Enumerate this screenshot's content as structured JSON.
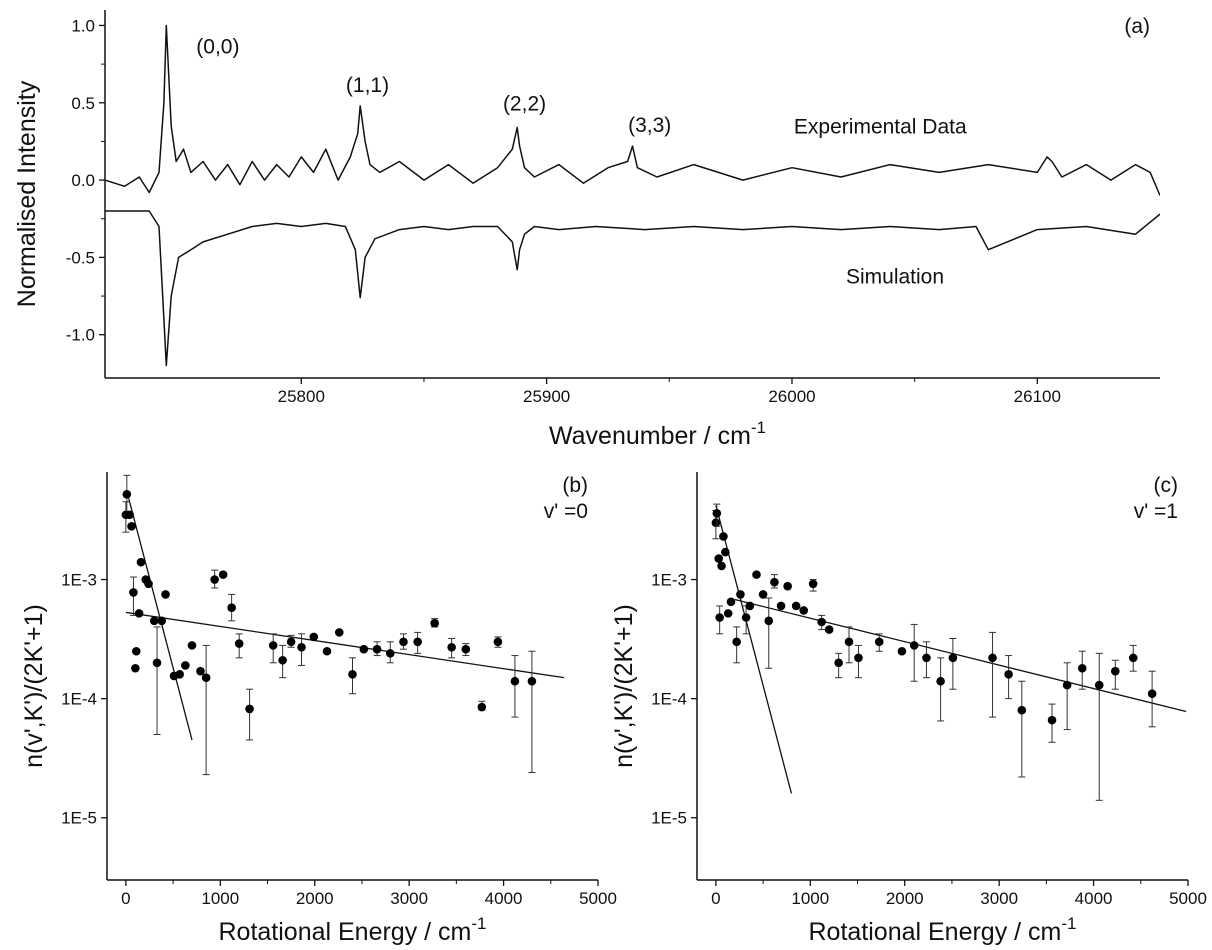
{
  "chart_data": [
    {
      "panel": "(a)",
      "type": "line",
      "xlabel": "Wavenumber / cm",
      "xlabel_sup": "-1",
      "ylabel": "Normalised Intensity",
      "xlim": [
        25720,
        26150
      ],
      "ylim": [
        -1.28,
        1.1
      ],
      "xticks": [
        25800,
        25900,
        26000,
        26100
      ],
      "yticks": [
        -1.0,
        -0.5,
        0.0,
        0.5,
        1.0
      ],
      "ytick_labels": [
        "-1.0",
        "-0.5",
        "0.0",
        "0.5",
        "1.0"
      ],
      "series": [
        {
          "name": "Experimental Data",
          "x": [
            25720,
            25728,
            25734,
            25738,
            25742,
            25744,
            25745,
            25747,
            25749,
            25752,
            25755,
            25760,
            25765,
            25770,
            25775,
            25780,
            25785,
            25790,
            25795,
            25800,
            25805,
            25810,
            25815,
            25820,
            25823,
            25824,
            25826,
            25828,
            25832,
            25840,
            25850,
            25860,
            25870,
            25880,
            25886,
            25888,
            25889,
            25891,
            25895,
            25905,
            25915,
            25925,
            25933,
            25935,
            25937,
            25945,
            25960,
            25980,
            26000,
            26020,
            26040,
            26060,
            26080,
            26100,
            26104,
            26106,
            26110,
            26120,
            26130,
            26140,
            26146,
            26150
          ],
          "y": [
            0.0,
            -0.04,
            0.02,
            -0.08,
            0.05,
            0.5,
            1.0,
            0.35,
            0.12,
            0.2,
            0.05,
            0.12,
            0.0,
            0.1,
            -0.03,
            0.12,
            0.0,
            0.1,
            0.02,
            0.15,
            0.05,
            0.2,
            0.0,
            0.15,
            0.3,
            0.48,
            0.25,
            0.1,
            0.05,
            0.12,
            0.0,
            0.1,
            -0.02,
            0.08,
            0.2,
            0.34,
            0.22,
            0.08,
            0.02,
            0.1,
            -0.02,
            0.08,
            0.12,
            0.22,
            0.08,
            0.02,
            0.1,
            0.0,
            0.08,
            0.02,
            0.1,
            0.05,
            0.1,
            0.05,
            0.15,
            0.12,
            0.02,
            0.1,
            0.0,
            0.1,
            0.05,
            -0.1
          ]
        },
        {
          "name": "Simulation",
          "x": [
            25720,
            25738,
            25742,
            25744,
            25745,
            25747,
            25750,
            25755,
            25760,
            25770,
            25780,
            25790,
            25800,
            25810,
            25818,
            25822,
            25824,
            25826,
            25830,
            25840,
            25850,
            25860,
            25870,
            25880,
            25886,
            25888,
            25889,
            25891,
            25895,
            25905,
            25920,
            25940,
            25960,
            25980,
            26000,
            26020,
            26040,
            26060,
            26075,
            26080,
            26100,
            26120,
            26140,
            26150
          ],
          "y": [
            -0.2,
            -0.2,
            -0.3,
            -0.9,
            -1.2,
            -0.75,
            -0.5,
            -0.45,
            -0.4,
            -0.35,
            -0.3,
            -0.28,
            -0.3,
            -0.28,
            -0.3,
            -0.45,
            -0.76,
            -0.5,
            -0.38,
            -0.32,
            -0.3,
            -0.32,
            -0.3,
            -0.3,
            -0.4,
            -0.58,
            -0.45,
            -0.35,
            -0.3,
            -0.32,
            -0.3,
            -0.32,
            -0.3,
            -0.32,
            -0.3,
            -0.32,
            -0.3,
            -0.32,
            -0.3,
            -0.45,
            -0.32,
            -0.3,
            -0.35,
            -0.22
          ]
        }
      ],
      "annotations": [
        {
          "text": "(0,0)",
          "x": 25766,
          "y": 0.82
        },
        {
          "text": "(1,1)",
          "x": 25827,
          "y": 0.57
        },
        {
          "text": "(2,2)",
          "x": 25891,
          "y": 0.45
        },
        {
          "text": "(3,3)",
          "x": 25942,
          "y": 0.31
        },
        {
          "text": "Experimental Data",
          "x": 26036,
          "y": 0.3
        },
        {
          "text": "Simulation",
          "x": 26042,
          "y": -0.67
        }
      ]
    },
    {
      "panel": "(b)",
      "subtitle": "v' =0",
      "type": "scatter",
      "xlabel": "Rotational Energy / cm",
      "xlabel_sup": "-1",
      "ylabel": "n(v',K')/(2K'+1)",
      "xlim": [
        -200,
        5000
      ],
      "ylim": [
        3e-06,
        0.008
      ],
      "yscale": "log",
      "xticks": [
        0,
        1000,
        2000,
        3000,
        4000,
        5000
      ],
      "yticks": [
        1e-05,
        0.0001,
        0.001
      ],
      "ytick_labels": [
        "1E-5",
        "1E-4",
        "1E-3"
      ],
      "points": [
        {
          "x": 0,
          "y": 0.0035,
          "lo": 0.0025,
          "hi": 0.0045
        },
        {
          "x": 10,
          "y": 0.0052,
          "lo": 0.0035,
          "hi": 0.0075
        },
        {
          "x": 40,
          "y": 0.0035
        },
        {
          "x": 60,
          "y": 0.0028
        },
        {
          "x": 80,
          "y": 0.00078,
          "lo": 0.0005,
          "hi": 0.00105
        },
        {
          "x": 100,
          "y": 0.00018
        },
        {
          "x": 110,
          "y": 0.00025
        },
        {
          "x": 140,
          "y": 0.00052
        },
        {
          "x": 160,
          "y": 0.0014
        },
        {
          "x": 210,
          "y": 0.001
        },
        {
          "x": 240,
          "y": 0.00092
        },
        {
          "x": 300,
          "y": 0.00045
        },
        {
          "x": 330,
          "y": 0.0002,
          "lo": 5e-05,
          "hi": 0.0004
        },
        {
          "x": 380,
          "y": 0.00045
        },
        {
          "x": 420,
          "y": 0.00075
        },
        {
          "x": 510,
          "y": 0.000155
        },
        {
          "x": 570,
          "y": 0.00016
        },
        {
          "x": 630,
          "y": 0.00019
        },
        {
          "x": 700,
          "y": 0.00028
        },
        {
          "x": 790,
          "y": 0.00017
        },
        {
          "x": 850,
          "y": 0.00015,
          "lo": 2.3e-05,
          "hi": 0.00028
        },
        {
          "x": 940,
          "y": 0.001,
          "lo": 0.00085,
          "hi": 0.0012
        },
        {
          "x": 1030,
          "y": 0.0011
        },
        {
          "x": 1120,
          "y": 0.00058,
          "lo": 0.00045,
          "hi": 0.00075
        },
        {
          "x": 1200,
          "y": 0.00029,
          "lo": 0.00022,
          "hi": 0.00035
        },
        {
          "x": 1310,
          "y": 8.2e-05,
          "lo": 4.5e-05,
          "hi": 0.00012
        },
        {
          "x": 1560,
          "y": 0.00028,
          "lo": 0.0002,
          "hi": 0.00035
        },
        {
          "x": 1660,
          "y": 0.00021,
          "lo": 0.00015,
          "hi": 0.00028
        },
        {
          "x": 1750,
          "y": 0.0003,
          "lo": 0.00027,
          "hi": 0.00034
        },
        {
          "x": 1860,
          "y": 0.00027,
          "lo": 0.00019,
          "hi": 0.00035
        },
        {
          "x": 1990,
          "y": 0.00033
        },
        {
          "x": 2130,
          "y": 0.00025
        },
        {
          "x": 2260,
          "y": 0.00036
        },
        {
          "x": 2400,
          "y": 0.00016,
          "lo": 0.00011,
          "hi": 0.00022
        },
        {
          "x": 2520,
          "y": 0.00026
        },
        {
          "x": 2660,
          "y": 0.00026,
          "lo": 0.00023,
          "hi": 0.0003
        },
        {
          "x": 2800,
          "y": 0.00024,
          "lo": 0.0002,
          "hi": 0.0003
        },
        {
          "x": 2940,
          "y": 0.0003,
          "lo": 0.00026,
          "hi": 0.00035
        },
        {
          "x": 3090,
          "y": 0.0003,
          "lo": 0.00024,
          "hi": 0.00036
        },
        {
          "x": 3270,
          "y": 0.00043,
          "lo": 0.0004,
          "hi": 0.00047
        },
        {
          "x": 3450,
          "y": 0.00027,
          "lo": 0.00022,
          "hi": 0.00032
        },
        {
          "x": 3600,
          "y": 0.00026,
          "lo": 0.00023,
          "hi": 0.00029
        },
        {
          "x": 3770,
          "y": 8.5e-05,
          "lo": 8e-05,
          "hi": 9.5e-05
        },
        {
          "x": 3940,
          "y": 0.0003,
          "lo": 0.00027,
          "hi": 0.00033
        },
        {
          "x": 4120,
          "y": 0.00014,
          "lo": 7e-05,
          "hi": 0.00023
        },
        {
          "x": 4300,
          "y": 0.00014,
          "lo": 2.4e-05,
          "hi": 0.00025
        }
      ],
      "fit_lines": [
        {
          "x": [
            30,
            700
          ],
          "y": [
            0.0048,
            4.5e-05
          ]
        },
        {
          "x": [
            0,
            4640
          ],
          "y": [
            0.00053,
            0.00015
          ]
        }
      ]
    },
    {
      "panel": "(c)",
      "subtitle": "v' =1",
      "type": "scatter",
      "xlabel": "Rotational Energy / cm",
      "xlabel_sup": "-1",
      "ylabel": "n(v',K')/(2K'+1)",
      "xlim": [
        -200,
        5000
      ],
      "ylim": [
        3e-06,
        0.008
      ],
      "yscale": "log",
      "xticks": [
        0,
        1000,
        2000,
        3000,
        4000,
        5000
      ],
      "yticks": [
        1e-05,
        0.0001,
        0.001
      ],
      "ytick_labels": [
        "1E-5",
        "1E-4",
        "1E-3"
      ],
      "points": [
        {
          "x": 0,
          "y": 0.003,
          "lo": 0.0022,
          "hi": 0.0038
        },
        {
          "x": 10,
          "y": 0.0036,
          "lo": 0.0028,
          "hi": 0.0043
        },
        {
          "x": 30,
          "y": 0.0015
        },
        {
          "x": 40,
          "y": 0.00048,
          "lo": 0.00035,
          "hi": 0.0006
        },
        {
          "x": 60,
          "y": 0.0013
        },
        {
          "x": 80,
          "y": 0.0023
        },
        {
          "x": 100,
          "y": 0.0017
        },
        {
          "x": 130,
          "y": 0.00052
        },
        {
          "x": 160,
          "y": 0.00065
        },
        {
          "x": 220,
          "y": 0.0003,
          "lo": 0.0002,
          "hi": 0.0004
        },
        {
          "x": 260,
          "y": 0.00075
        },
        {
          "x": 320,
          "y": 0.00048,
          "lo": 0.00035,
          "hi": 0.0006
        },
        {
          "x": 360,
          "y": 0.0006
        },
        {
          "x": 430,
          "y": 0.0011
        },
        {
          "x": 500,
          "y": 0.00075
        },
        {
          "x": 560,
          "y": 0.00045,
          "lo": 0.00018,
          "hi": 0.0007
        },
        {
          "x": 620,
          "y": 0.00095,
          "lo": 0.00085,
          "hi": 0.0011
        },
        {
          "x": 690,
          "y": 0.0006
        },
        {
          "x": 760,
          "y": 0.00088
        },
        {
          "x": 850,
          "y": 0.0006
        },
        {
          "x": 930,
          "y": 0.00055
        },
        {
          "x": 1030,
          "y": 0.00092,
          "lo": 0.0008,
          "hi": 0.001
        },
        {
          "x": 1120,
          "y": 0.00044,
          "lo": 0.00038,
          "hi": 0.0005
        },
        {
          "x": 1200,
          "y": 0.00038
        },
        {
          "x": 1300,
          "y": 0.0002,
          "lo": 0.00015,
          "hi": 0.00024
        },
        {
          "x": 1410,
          "y": 0.0003,
          "lo": 0.0002,
          "hi": 0.0004
        },
        {
          "x": 1510,
          "y": 0.00022,
          "lo": 0.00015,
          "hi": 0.00028
        },
        {
          "x": 1730,
          "y": 0.0003,
          "lo": 0.00025,
          "hi": 0.00035
        },
        {
          "x": 1970,
          "y": 0.00025
        },
        {
          "x": 2100,
          "y": 0.00028,
          "lo": 0.00014,
          "hi": 0.00042
        },
        {
          "x": 2230,
          "y": 0.00022,
          "lo": 0.00015,
          "hi": 0.0003
        },
        {
          "x": 2380,
          "y": 0.00014,
          "lo": 6.5e-05,
          "hi": 0.00022
        },
        {
          "x": 2510,
          "y": 0.00022,
          "lo": 0.00012,
          "hi": 0.00032
        },
        {
          "x": 2930,
          "y": 0.00022,
          "lo": 7e-05,
          "hi": 0.00036
        },
        {
          "x": 3100,
          "y": 0.00016,
          "lo": 0.0001,
          "hi": 0.00023
        },
        {
          "x": 3240,
          "y": 8e-05,
          "lo": 2.2e-05,
          "hi": 0.00014
        },
        {
          "x": 3560,
          "y": 6.6e-05,
          "lo": 4.3e-05,
          "hi": 9e-05
        },
        {
          "x": 3720,
          "y": 0.00013,
          "lo": 5.5e-05,
          "hi": 0.0002
        },
        {
          "x": 3880,
          "y": 0.00018,
          "lo": 0.00012,
          "hi": 0.00025
        },
        {
          "x": 4060,
          "y": 0.00013,
          "lo": 1.4e-05,
          "hi": 0.00024
        },
        {
          "x": 4230,
          "y": 0.00017,
          "lo": 0.00012,
          "hi": 0.00021
        },
        {
          "x": 4420,
          "y": 0.00022,
          "lo": 0.00017,
          "hi": 0.00028
        },
        {
          "x": 4620,
          "y": 0.00011,
          "lo": 5.8e-05,
          "hi": 0.00017
        }
      ],
      "fit_lines": [
        {
          "x": [
            0,
            800
          ],
          "y": [
            0.0042,
            1.6e-05
          ]
        },
        {
          "x": [
            200,
            4980
          ],
          "y": [
            0.00068,
            7.8e-05
          ]
        }
      ]
    }
  ]
}
